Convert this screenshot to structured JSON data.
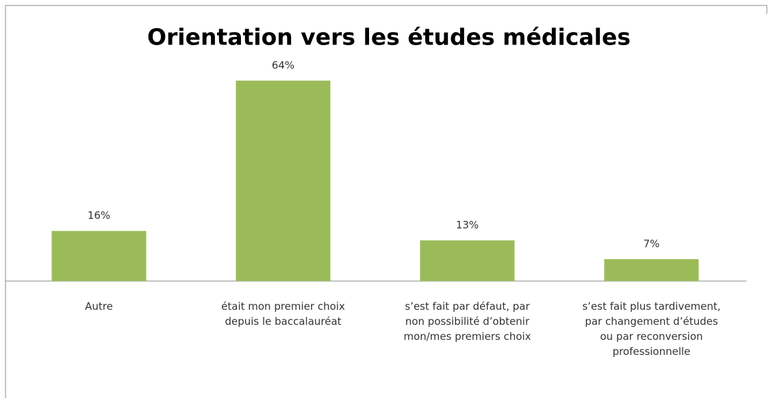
{
  "chart_data": {
    "type": "bar",
    "title": "Orientation vers les études médicales",
    "categories": [
      "Autre",
      "était mon premier choix depuis le baccalauréat",
      "s’est fait par défaut, par non possibilité d’obtenir mon/mes premiers choix",
      "s’est fait plus tardivement, par changement d’études ou par reconversion professionnelle"
    ],
    "values": [
      16,
      64,
      13,
      7
    ],
    "value_labels": [
      "16%",
      "64%",
      "13%",
      "7%"
    ],
    "color": "#9bbb59"
  }
}
